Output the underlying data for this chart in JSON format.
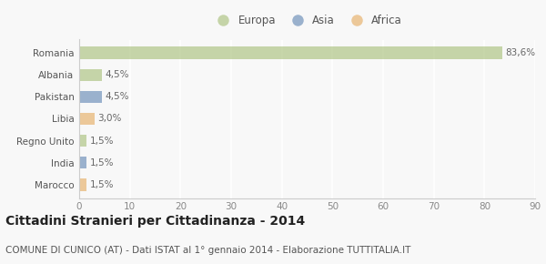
{
  "categories": [
    "Romania",
    "Albania",
    "Pakistan",
    "Libia",
    "Regno Unito",
    "India",
    "Marocco"
  ],
  "values": [
    83.6,
    4.5,
    4.5,
    3.0,
    1.5,
    1.5,
    1.5
  ],
  "labels": [
    "83,6%",
    "4,5%",
    "4,5%",
    "3,0%",
    "1,5%",
    "1,5%",
    "1,5%"
  ],
  "colors": [
    "#b5c98e",
    "#b5c98e",
    "#7b9abf",
    "#e8b87a",
    "#b5c98e",
    "#7b9abf",
    "#e8b87a"
  ],
  "legend_labels": [
    "Europa",
    "Asia",
    "Africa"
  ],
  "legend_colors": [
    "#b5c98e",
    "#7b9abf",
    "#e8b87a"
  ],
  "xlim": [
    0,
    90
  ],
  "xticks": [
    0,
    10,
    20,
    30,
    40,
    50,
    60,
    70,
    80,
    90
  ],
  "title": "Cittadini Stranieri per Cittadinanza - 2014",
  "subtitle": "COMUNE DI CUNICO (AT) - Dati ISTAT al 1° gennaio 2014 - Elaborazione TUTTITALIA.IT",
  "bg_color": "#f8f8f8",
  "grid_color": "#ffffff",
  "bar_alpha": 0.75,
  "title_fontsize": 10,
  "subtitle_fontsize": 7.5,
  "label_fontsize": 7.5,
  "tick_fontsize": 7.5,
  "legend_fontsize": 8.5
}
